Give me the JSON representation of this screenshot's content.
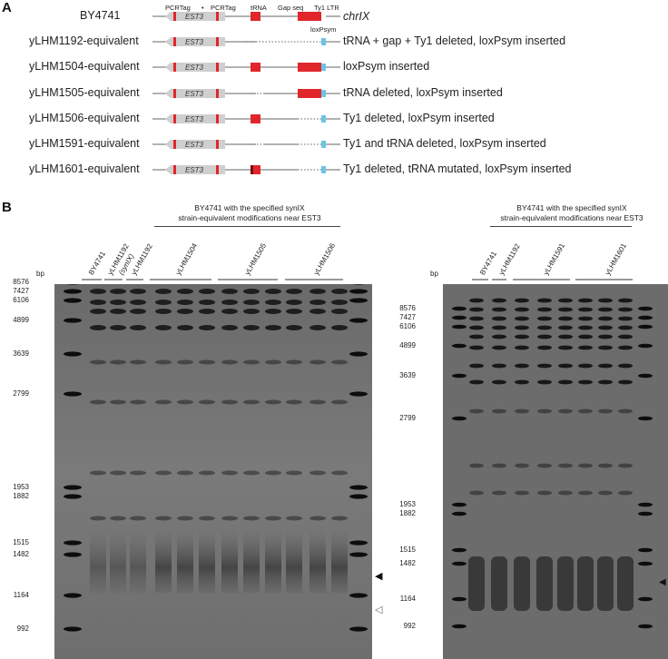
{
  "panel_a": {
    "letter": "A",
    "chromosome_label": "chrIX",
    "features": {
      "pcrtag1": "PCRTag",
      "dot": "•",
      "pcrtag2": "PCRTag",
      "trna": "tRNA",
      "gap": "Gap seq",
      "ty1": "Ty1 LTR",
      "loxpsym": "loxPsym",
      "est3": "EST3"
    },
    "rows": [
      {
        "strain": "BY4741",
        "description": ""
      },
      {
        "strain": "yLHM1192-equivalent",
        "description": "tRNA + gap + Ty1 deleted, loxPsym inserted"
      },
      {
        "strain": "yLHM1504-equivalent",
        "description": "loxPsym inserted"
      },
      {
        "strain": "yLHM1505-equivalent",
        "description": "tRNA deleted, loxPsym inserted"
      },
      {
        "strain": "yLHM1506-equivalent",
        "description": "Ty1 deleted, loxPsym inserted"
      },
      {
        "strain": "yLHM1591-equivalent",
        "description": "Ty1 and tRNA deleted, loxPsym inserted"
      },
      {
        "strain": "yLHM1601-equivalent",
        "description": "Ty1 deleted, tRNA mutated, loxPsym inserted"
      }
    ]
  },
  "panel_b": {
    "letter": "B",
    "left_gel": {
      "header_line1": "BY4741 with the specified synIX",
      "header_line2": "strain-equivalent modifications near EST3",
      "lanes": [
        "BY4741",
        "yLHM1192",
        "(synIX)",
        "yLHM1192",
        "yLHM1504",
        "yLHM1505",
        "yLHM1506"
      ],
      "bp_label": "bp",
      "markers": [
        "8576",
        "7427",
        "6106",
        "4899",
        "3639",
        "2799",
        "1953",
        "1882",
        "1515",
        "1482",
        "1164",
        "992"
      ]
    },
    "right_gel": {
      "header_line1": "BY4741 with the specified synIX",
      "header_line2": "strain-equivalent modifications near EST3",
      "lanes": [
        "BY4741",
        "yLHM1192",
        "yLHM1591",
        "yLHM1601"
      ],
      "bp_label": "bp",
      "markers": [
        "8576",
        "7427",
        "6106",
        "4899",
        "3639",
        "2799",
        "1953",
        "1882",
        "1515",
        "1482",
        "1164",
        "992"
      ]
    },
    "arrow_filled": "◀",
    "arrow_open": "◁"
  }
}
